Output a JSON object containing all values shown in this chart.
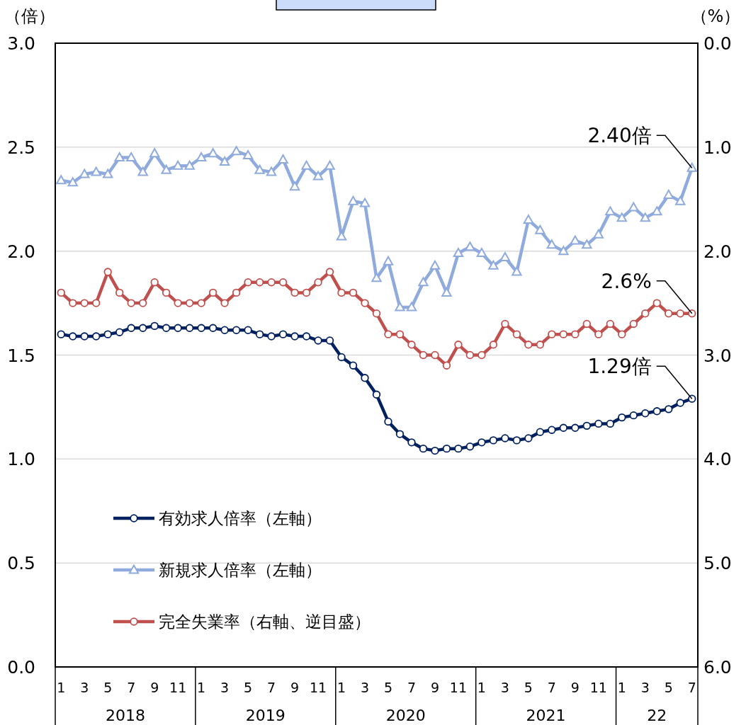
{
  "chart_data": {
    "type": "line",
    "categories": [
      "1",
      null,
      "3",
      null,
      "5",
      null,
      "7",
      null,
      "9",
      null,
      "11",
      null,
      "1",
      null,
      "3",
      null,
      "5",
      null,
      "7",
      null,
      "9",
      null,
      "11",
      null,
      "1",
      null,
      "3",
      null,
      "5",
      null,
      "7",
      null,
      "9",
      null,
      "11",
      null,
      "1",
      null,
      "3",
      null,
      "5",
      null,
      "7",
      null,
      "9",
      null,
      "11",
      null,
      "1",
      null,
      "3",
      null,
      "5",
      null,
      "7"
    ],
    "ylabel": "（倍）",
    "y2label": "（%）",
    "ylim": [
      0,
      3
    ],
    "yticks": [
      {
        "value": 0,
        "label": "0.0"
      },
      0.5,
      {
        "value": 1,
        "label": "1.0"
      },
      1.5,
      {
        "value": 2,
        "label": "2.0"
      },
      2.5,
      {
        "value": 3,
        "label": "3.0"
      }
    ],
    "y2lim": [
      6,
      0
    ],
    "y2ticks": [
      {
        "value": 0,
        "label": "0.0"
      },
      {
        "value": 1,
        "label": "1.0"
      },
      {
        "value": 2,
        "label": "2.0"
      },
      {
        "value": 3,
        "label": "3.0"
      },
      {
        "value": 4,
        "label": "4.0"
      },
      {
        "value": 5,
        "label": "5.0"
      },
      {
        "value": 6,
        "label": "6.0"
      }
    ],
    "grid": "y",
    "legend": "bottom left",
    "annotations": [
      "2018",
      "2019",
      "2020",
      "2021",
      "22"
    ],
    "series": [
      {
        "name": "有効求人倍率（左軸）",
        "color": "#002060",
        "marker": "circle",
        "values": [
          1.6,
          1.59,
          1.59,
          1.59,
          1.6,
          1.61,
          1.63,
          1.63,
          1.64,
          1.63,
          1.63,
          1.63,
          1.63,
          1.63,
          1.62,
          1.62,
          1.62,
          1.6,
          1.59,
          1.6,
          1.59,
          1.59,
          1.57,
          1.57,
          1.49,
          1.45,
          1.39,
          1.31,
          1.18,
          1.12,
          1.08,
          1.05,
          1.04,
          1.05,
          1.05,
          1.06,
          1.08,
          1.09,
          1.1,
          1.09,
          1.1,
          1.13,
          1.14,
          1.15,
          1.15,
          1.16,
          1.17,
          1.17,
          1.2,
          1.21,
          1.22,
          1.23,
          1.24,
          1.27,
          1.29
        ],
        "value_labels": [
          null,
          null,
          null,
          null,
          null,
          null,
          null,
          null,
          null,
          null,
          null,
          null,
          null,
          null,
          null,
          null,
          null,
          null,
          null,
          null,
          null,
          null,
          null,
          null,
          null,
          null,
          null,
          null,
          null,
          null,
          null,
          null,
          null,
          null,
          null,
          null,
          null,
          null,
          null,
          null,
          null,
          null,
          null,
          null,
          null,
          null,
          null,
          null,
          null,
          null,
          null,
          null,
          null,
          null,
          "1.29倍"
        ]
      },
      {
        "name": "新規求人倍率（左軸）",
        "color": "#8faadc",
        "marker": "triangle",
        "values": [
          2.34,
          2.33,
          2.37,
          2.38,
          2.37,
          2.45,
          2.45,
          2.38,
          2.47,
          2.39,
          2.41,
          2.41,
          2.45,
          2.47,
          2.43,
          2.48,
          2.46,
          2.39,
          2.38,
          2.44,
          2.31,
          2.41,
          2.36,
          2.41,
          2.07,
          2.24,
          2.23,
          1.87,
          1.95,
          1.73,
          1.73,
          1.85,
          1.93,
          1.8,
          1.99,
          2.02,
          1.99,
          1.93,
          1.97,
          1.9,
          2.15,
          2.1,
          2.03,
          2.0,
          2.05,
          2.03,
          2.08,
          2.19,
          2.16,
          2.21,
          2.16,
          2.19,
          2.27,
          2.24,
          2.4
        ],
        "value_labels": [
          null,
          null,
          null,
          null,
          null,
          null,
          null,
          null,
          null,
          null,
          null,
          null,
          null,
          null,
          null,
          null,
          null,
          null,
          null,
          null,
          null,
          null,
          null,
          null,
          null,
          null,
          null,
          null,
          null,
          null,
          null,
          null,
          null,
          null,
          null,
          null,
          null,
          null,
          null,
          null,
          null,
          null,
          null,
          null,
          null,
          null,
          null,
          null,
          null,
          null,
          null,
          null,
          null,
          null,
          "2.40倍"
        ]
      },
      {
        "name": "完全失業率（右軸、逆目盛）",
        "color": "#c0504d",
        "marker": "circle",
        "axis": "y2",
        "values": [
          2.4,
          2.5,
          2.5,
          2.5,
          2.2,
          2.4,
          2.5,
          2.5,
          2.3,
          2.4,
          2.5,
          2.5,
          2.5,
          2.4,
          2.5,
          2.4,
          2.3,
          2.3,
          2.3,
          2.3,
          2.4,
          2.4,
          2.3,
          2.2,
          2.4,
          2.4,
          2.5,
          2.6,
          2.8,
          2.8,
          2.9,
          3.0,
          3.0,
          3.1,
          2.9,
          3.0,
          3.0,
          2.9,
          2.7,
          2.8,
          2.9,
          2.9,
          2.8,
          2.8,
          2.8,
          2.7,
          2.8,
          2.7,
          2.8,
          2.7,
          2.6,
          2.5,
          2.6,
          2.6,
          2.6
        ],
        "value_labels": [
          null,
          null,
          null,
          null,
          null,
          null,
          null,
          null,
          null,
          null,
          null,
          null,
          null,
          null,
          null,
          null,
          null,
          null,
          null,
          null,
          null,
          null,
          null,
          null,
          null,
          null,
          null,
          null,
          null,
          null,
          null,
          null,
          null,
          null,
          null,
          null,
          null,
          null,
          null,
          null,
          null,
          null,
          null,
          null,
          null,
          null,
          null,
          null,
          null,
          null,
          null,
          null,
          null,
          null,
          "2.6%"
        ]
      }
    ]
  }
}
